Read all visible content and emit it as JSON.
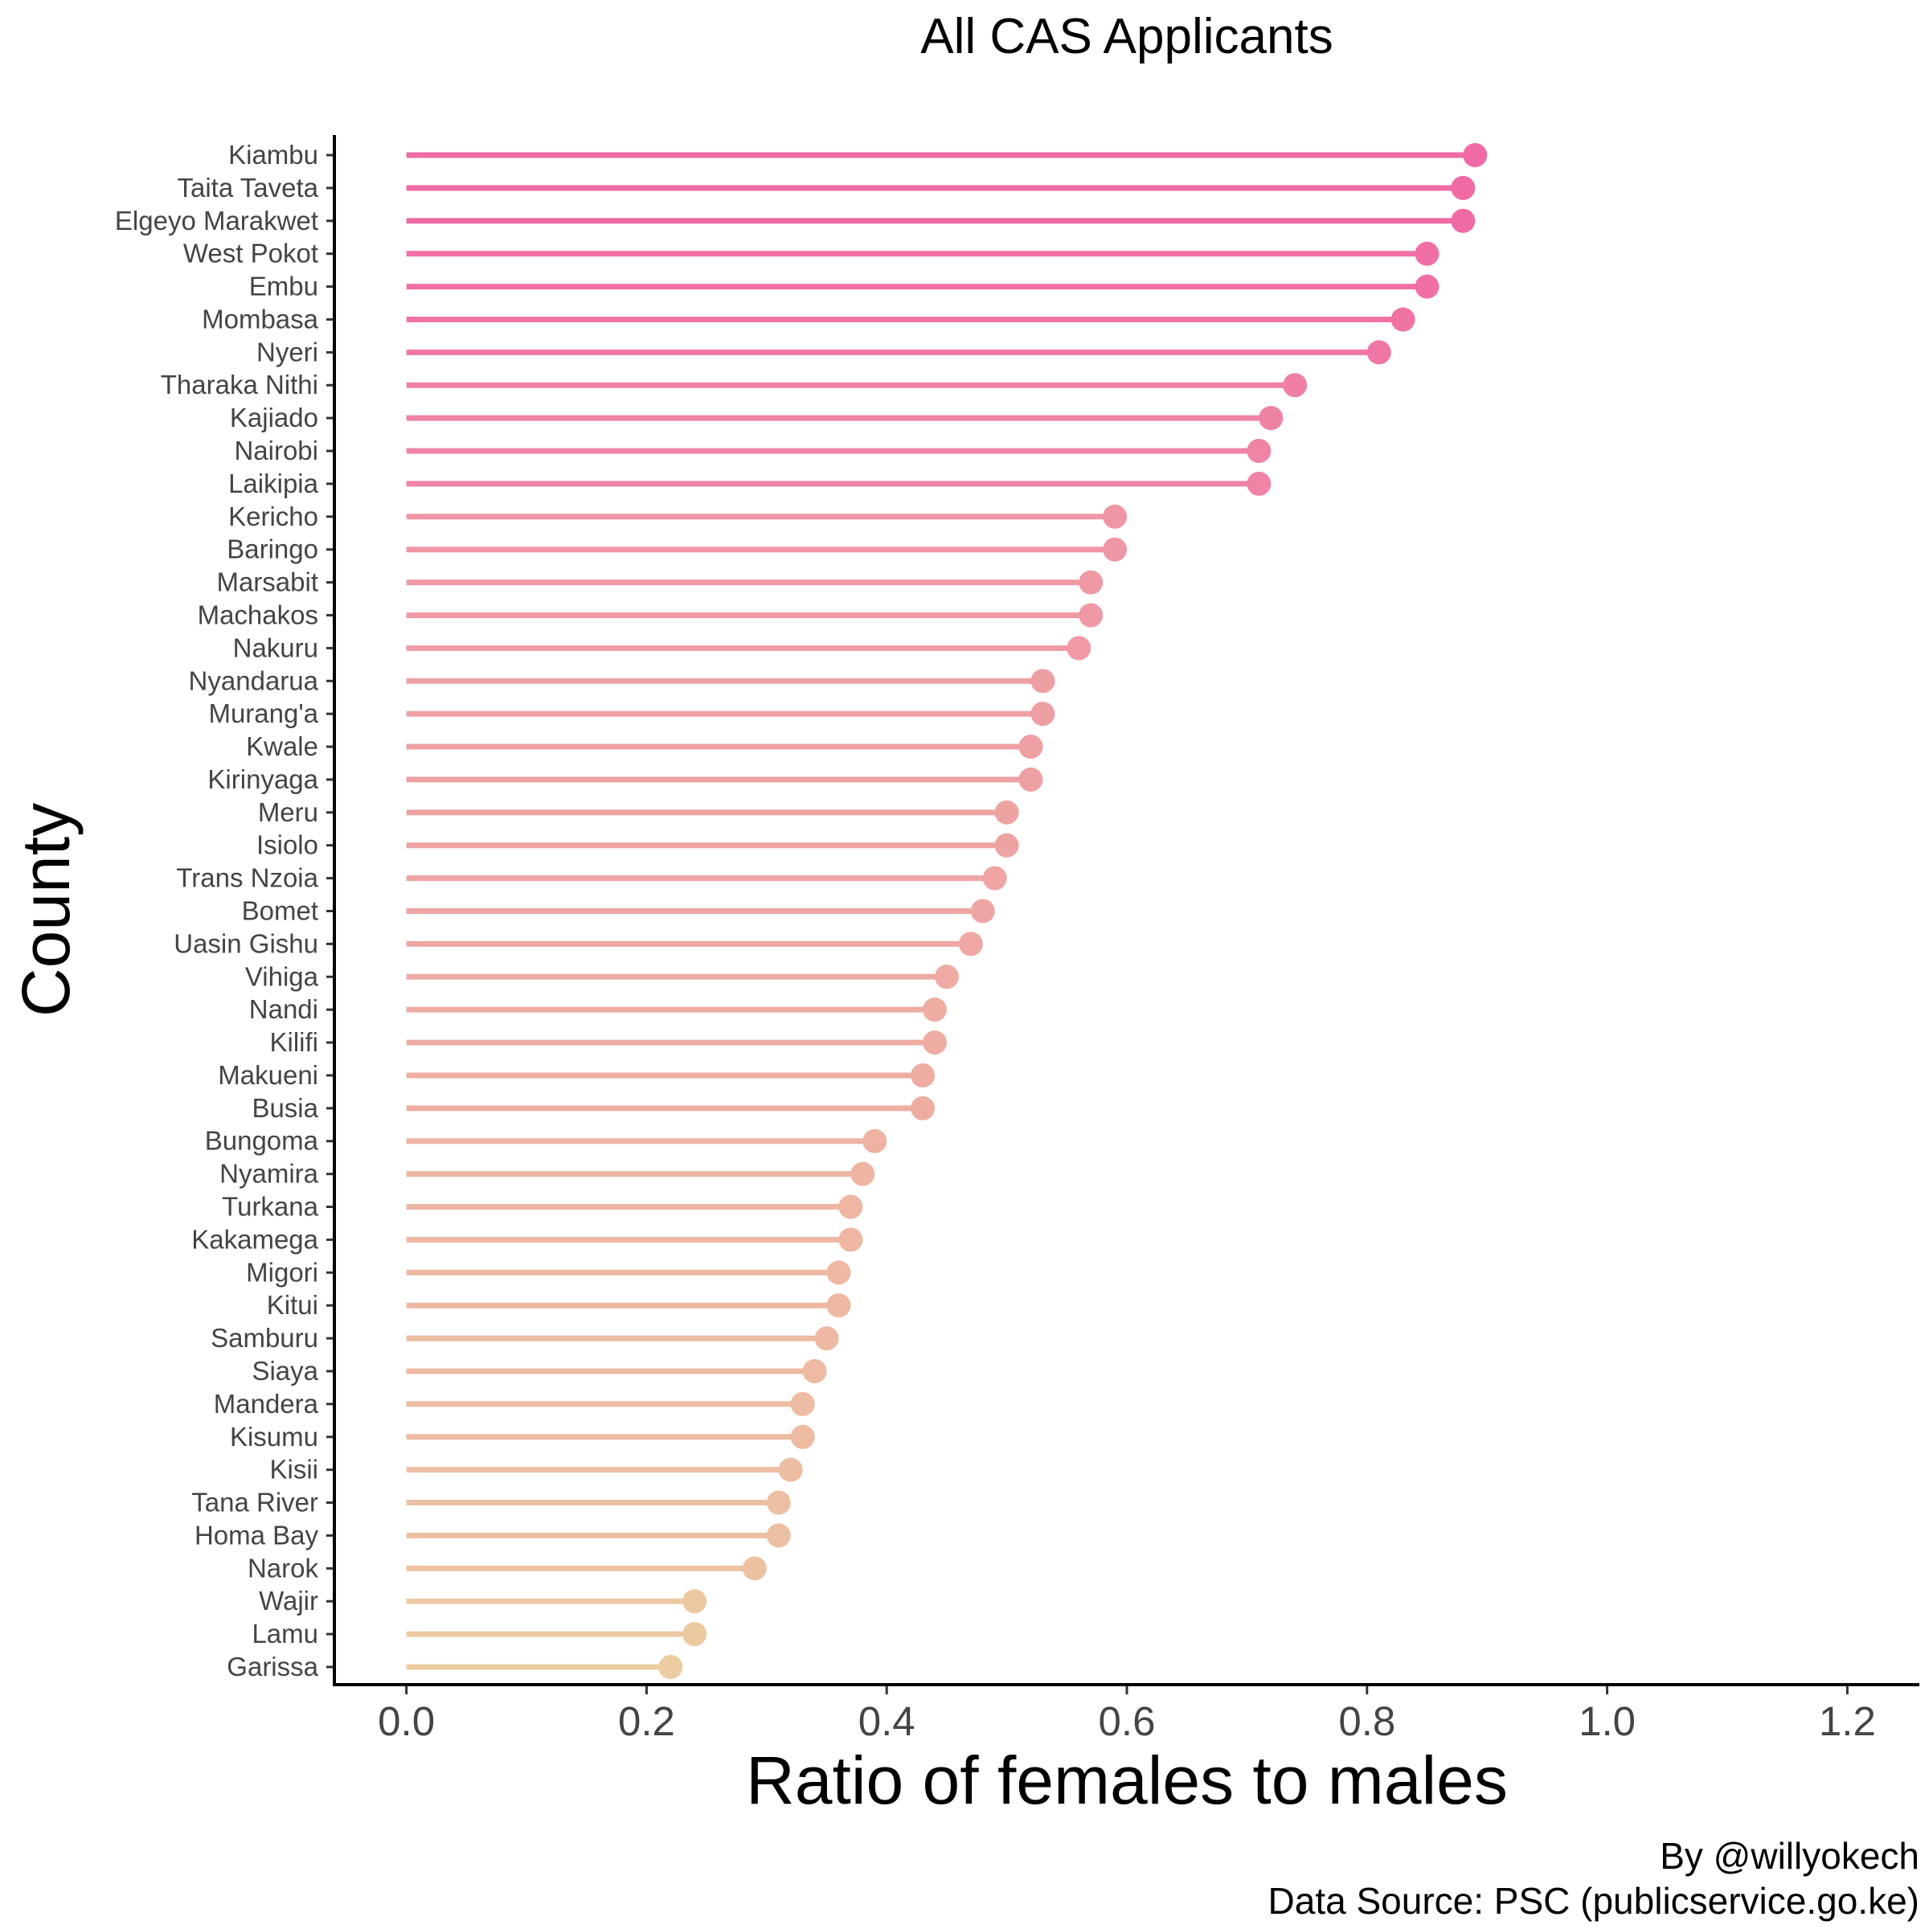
{
  "chart_data": {
    "type": "lollipop",
    "title": "All CAS Applicants",
    "xlabel": "Ratio of females to males",
    "ylabel": "County",
    "xlim": [
      -0.06,
      1.26
    ],
    "xticks": [
      0.0,
      0.2,
      0.4,
      0.6,
      0.8,
      1.0,
      1.2
    ],
    "xtick_labels": [
      "0.0",
      "0.2",
      "0.4",
      "0.6",
      "0.8",
      "1.0",
      "1.2"
    ],
    "grid": false,
    "legend": "none",
    "colors": {
      "high": "#f06aa5",
      "low": "#edcca2"
    },
    "caption": [
      "By @willyokech",
      "Data Source: PSC (publicservice.go.ke)"
    ],
    "categories": [
      "Kiambu",
      "Taita Taveta",
      "Elgeyo Marakwet",
      "West Pokot",
      "Embu",
      "Mombasa",
      "Nyeri",
      "Tharaka Nithi",
      "Kajiado",
      "Nairobi",
      "Laikipia",
      "Kericho",
      "Baringo",
      "Marsabit",
      "Machakos",
      "Nakuru",
      "Nyandarua",
      "Murang'a",
      "Kwale",
      "Kirinyaga",
      "Meru",
      "Isiolo",
      "Trans Nzoia",
      "Bomet",
      "Uasin Gishu",
      "Vihiga",
      "Nandi",
      "Kilifi",
      "Makueni",
      "Busia",
      "Bungoma",
      "Nyamira",
      "Turkana",
      "Kakamega",
      "Migori",
      "Kitui",
      "Samburu",
      "Siaya",
      "Mandera",
      "Kisumu",
      "Kisii",
      "Tana River",
      "Homa Bay",
      "Narok",
      "Wajir",
      "Lamu",
      "Garissa"
    ],
    "values": [
      0.89,
      0.88,
      0.88,
      0.85,
      0.85,
      0.83,
      0.81,
      0.74,
      0.72,
      0.71,
      0.71,
      0.59,
      0.59,
      0.57,
      0.57,
      0.56,
      0.53,
      0.53,
      0.52,
      0.52,
      0.5,
      0.5,
      0.49,
      0.48,
      0.47,
      0.45,
      0.44,
      0.44,
      0.43,
      0.43,
      0.39,
      0.38,
      0.37,
      0.37,
      0.36,
      0.36,
      0.35,
      0.34,
      0.33,
      0.33,
      0.32,
      0.31,
      0.31,
      0.29,
      0.24,
      0.24,
      0.22
    ]
  }
}
